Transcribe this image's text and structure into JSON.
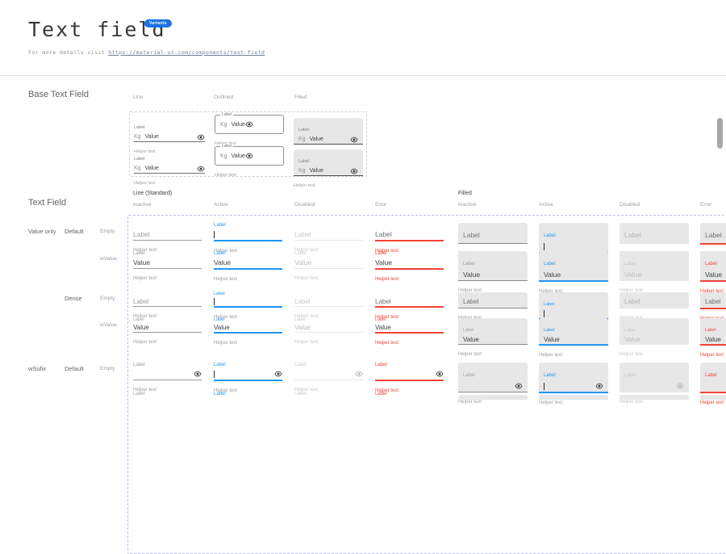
{
  "header": {
    "title": "Text field",
    "badge": "Variants",
    "subtitle_prefix": "For more details visit",
    "subtitle_link": "https://material-ui.com/components/text-field"
  },
  "strings": {
    "label": "Label",
    "value": "Value",
    "helper_text": "Helper text",
    "adornment": "Kg"
  },
  "colors": {
    "accent": "#2196f3",
    "error": "#f44336",
    "badge_bg": "#1a73e8",
    "filled_bg": "#e7e7e7"
  },
  "base_section": {
    "title": "Base Text Field",
    "columns": [
      "Line",
      "Outlined",
      "Filled"
    ]
  },
  "matrix_section": {
    "title": "Text Field",
    "groups": [
      "Line (Standard)",
      "Filled"
    ],
    "states": [
      "Inactive",
      "Active",
      "Disabled",
      "Error"
    ],
    "rows": [
      {
        "group": "Value only",
        "variant": "Default",
        "mode": "Empty",
        "kind": "empty"
      },
      {
        "mode": "wValue",
        "kind": "value"
      },
      {
        "variant": "Dense",
        "mode": "Empty",
        "kind": "empty",
        "dense": true
      },
      {
        "mode": "wValue",
        "kind": "value",
        "dense": true
      },
      {
        "group": "wSufix",
        "variant": "Default",
        "mode": "Empty",
        "kind": "empty",
        "suffix": true
      },
      {
        "kind": "partial",
        "suffix": true
      }
    ]
  }
}
